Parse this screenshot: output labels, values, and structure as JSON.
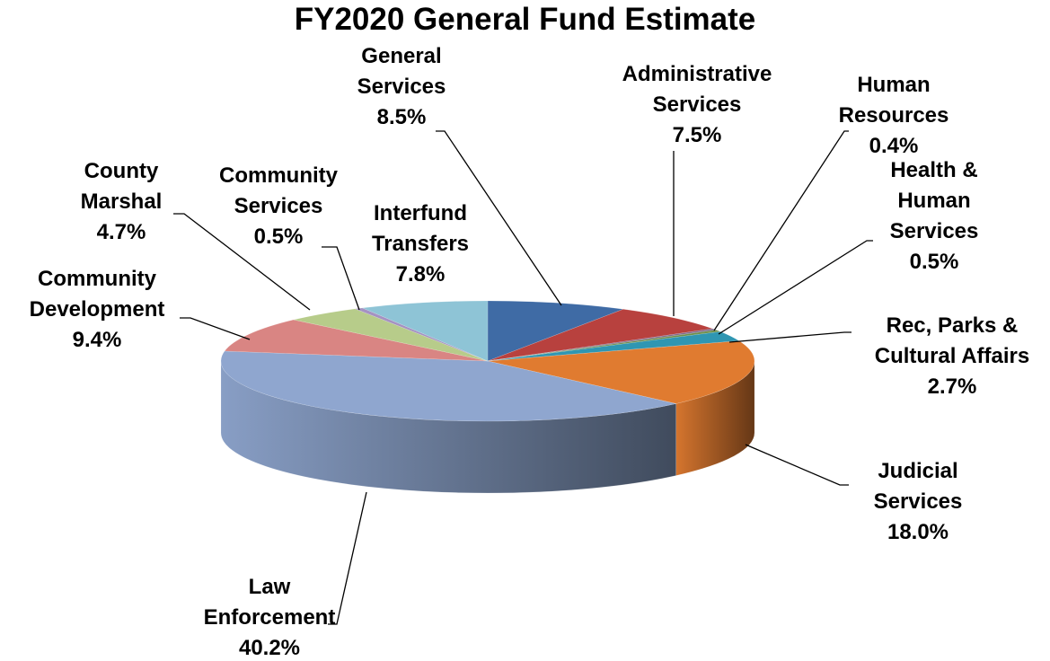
{
  "chart_data": {
    "type": "pie",
    "title": "FY2020 General Fund Estimate",
    "categories": [
      "General Services",
      "Administrative Services",
      "Human Resources",
      "Health & Human Services",
      "Rec, Parks & Cultural Affairs",
      "Judicial Services",
      "Law Enforcement",
      "Community Development",
      "County Marshal",
      "Community Services",
      "Interfund Transfers"
    ],
    "values": [
      8.5,
      7.5,
      0.4,
      0.5,
      2.7,
      18.0,
      40.2,
      9.4,
      4.7,
      0.5,
      7.8
    ],
    "value_labels": [
      "8.5%",
      "7.5%",
      "0.4%",
      "0.5%",
      "2.7%",
      "18.0%",
      "40.2%",
      "9.4%",
      "4.7%",
      "0.5%",
      "7.8%"
    ],
    "colors": [
      "#3f6ba5",
      "#b8413e",
      "#7f6a8c",
      "#6e8f4a",
      "#2f96b2",
      "#e07b30",
      "#8fa6cf",
      "#d98583",
      "#b7cc8a",
      "#a592c2",
      "#8ec4d6"
    ]
  }
}
